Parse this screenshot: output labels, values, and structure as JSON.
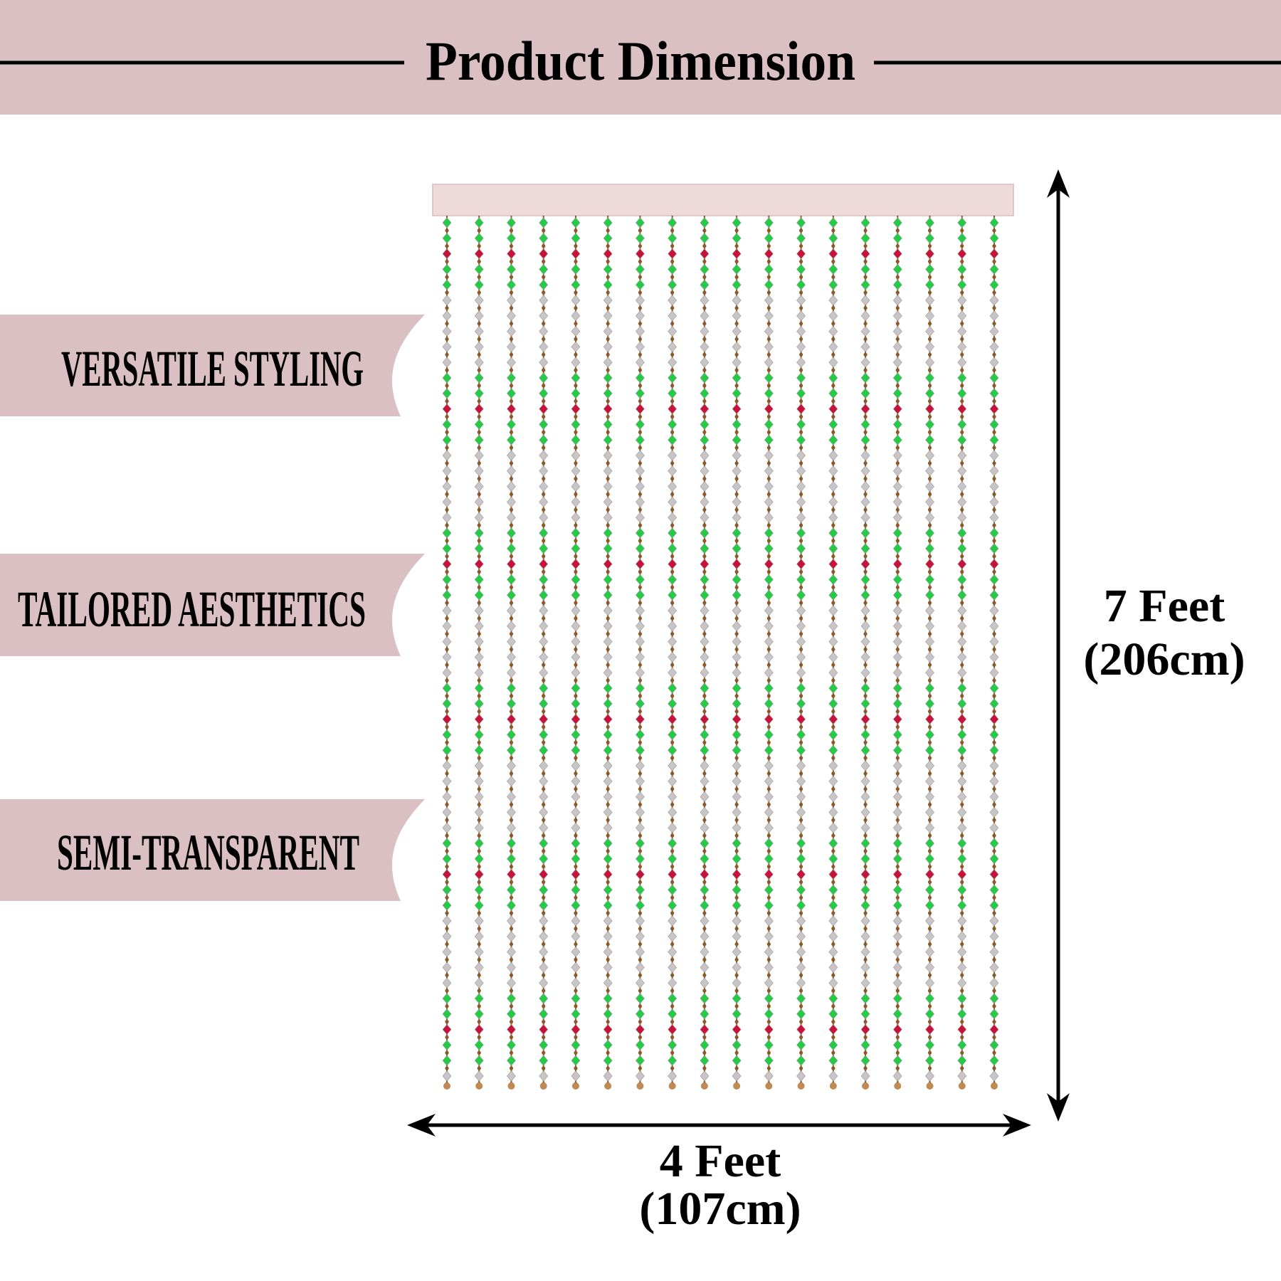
{
  "header": {
    "title": "Product Dimension"
  },
  "features": [
    "VERSATILE STYLING",
    "TAILORED AESTHETICS",
    "SEMI-TRANSPARENT"
  ],
  "dimensions": {
    "width": {
      "label": "4 Feet",
      "metric": "(107cm)"
    },
    "height": {
      "label": "7 Feet",
      "metric": "(206cm)"
    }
  }
}
